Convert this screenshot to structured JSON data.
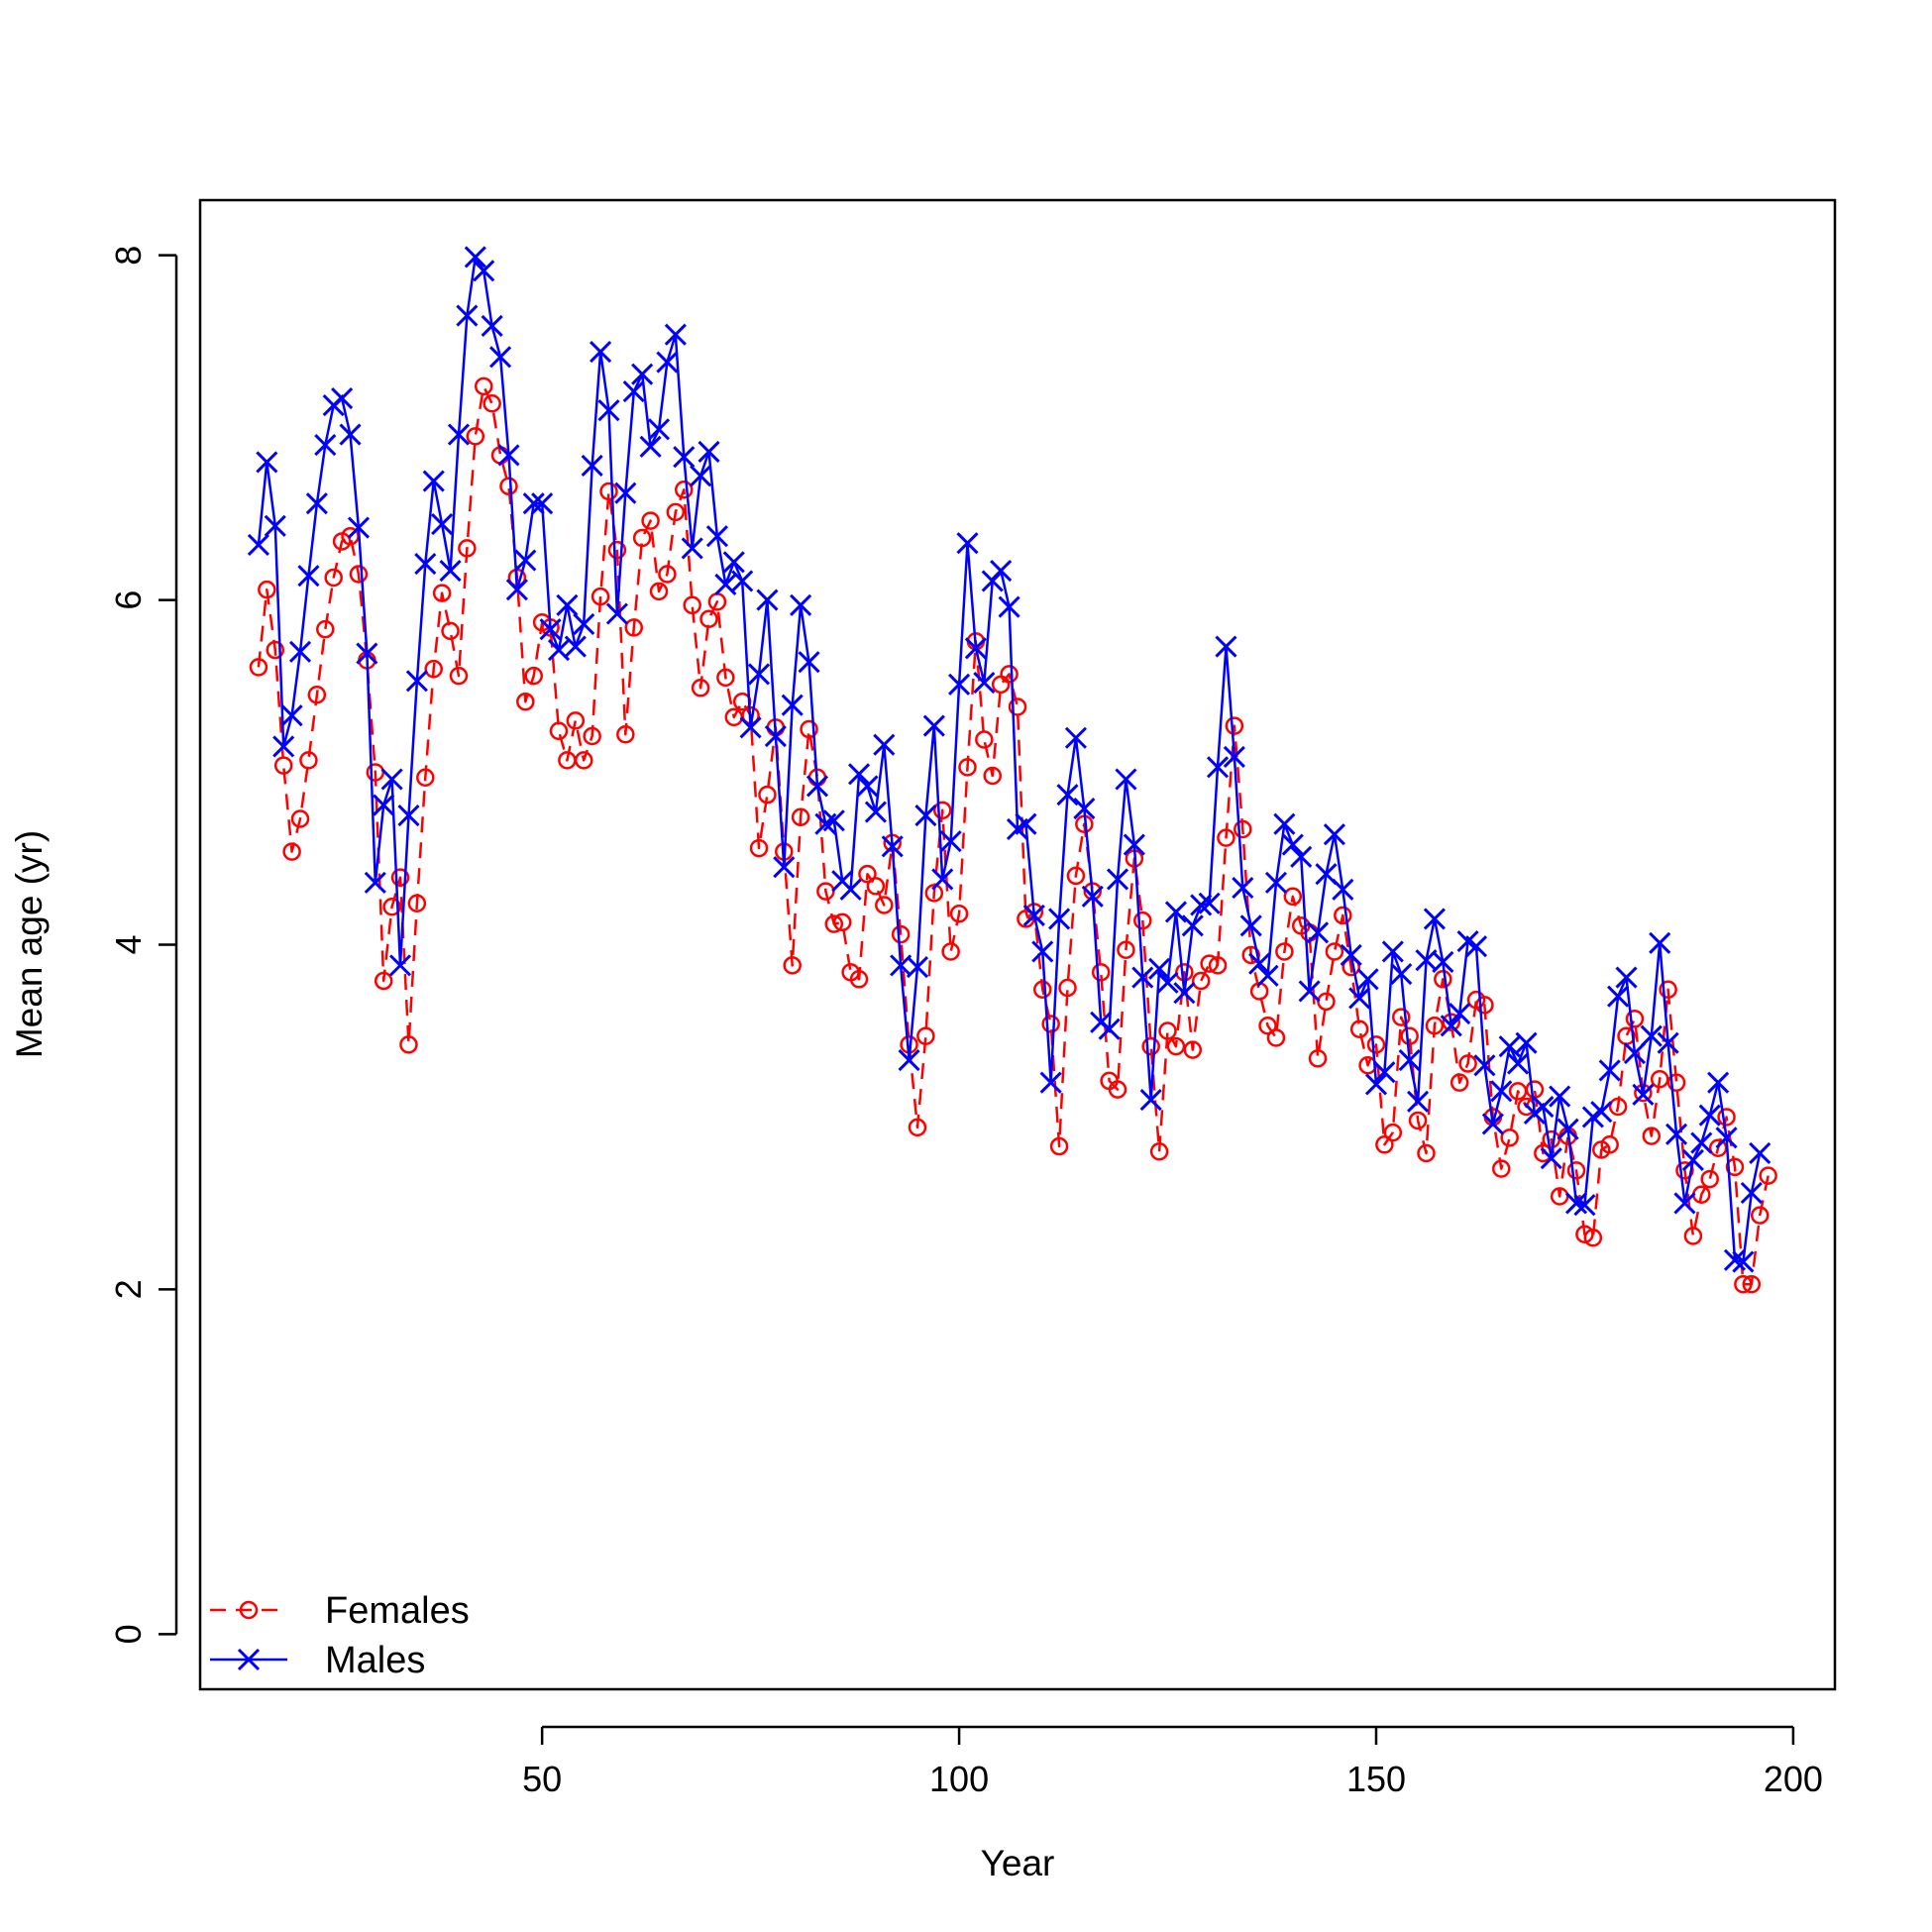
{
  "chart_data": {
    "type": "line",
    "title": "",
    "xlabel": "Year",
    "ylabel": "Mean age (yr)",
    "xlim": [
      9,
      205
    ],
    "ylim": [
      -0.32,
      8.32
    ],
    "xticks": [
      50,
      100,
      150,
      200
    ],
    "yticks": [
      0,
      2,
      4,
      6,
      8
    ],
    "grid": false,
    "legend_position": "bottom-left",
    "x_start": 16,
    "series": [
      {
        "name": "Females",
        "color": "#ff0000",
        "line_style": "dashed",
        "marker": "circle",
        "values": [
          5.61,
          6.06,
          5.71,
          5.04,
          4.54,
          4.73,
          5.07,
          5.45,
          5.83,
          6.13,
          6.34,
          6.37,
          6.15,
          5.65,
          5.0,
          3.79,
          4.22,
          4.39,
          3.42,
          4.24,
          4.97,
          5.6,
          6.04,
          5.82,
          5.56,
          6.3,
          6.95,
          7.24,
          7.14,
          6.84,
          6.66,
          6.13,
          5.41,
          5.56,
          5.87,
          5.84,
          5.24,
          5.07,
          5.3,
          5.07,
          5.21,
          6.02,
          6.63,
          6.29,
          5.22,
          5.84,
          6.36,
          6.46,
          6.05,
          6.15,
          6.51,
          6.64,
          5.97,
          5.49,
          5.89,
          5.99,
          5.55,
          5.32,
          5.41,
          5.33,
          4.56,
          4.87,
          5.26,
          4.54,
          3.88,
          4.74,
          5.25,
          4.97,
          4.31,
          4.12,
          4.13,
          3.84,
          3.8,
          4.41,
          4.34,
          4.23,
          4.59,
          4.06,
          3.42,
          2.94,
          3.47,
          4.3,
          4.78,
          3.96,
          4.18,
          5.03,
          5.76,
          5.19,
          4.98,
          5.51,
          5.57,
          5.38,
          4.15,
          4.19,
          3.74,
          3.54,
          2.83,
          3.75,
          4.4,
          4.7,
          4.31,
          3.84,
          3.21,
          3.16,
          3.97,
          4.5,
          4.14,
          3.41,
          2.8,
          3.5,
          3.41,
          3.84,
          3.39,
          3.79,
          3.89,
          3.88,
          4.62,
          5.27,
          4.67,
          3.94,
          3.73,
          3.53,
          3.46,
          3.96,
          4.28,
          4.11,
          4.07,
          3.34,
          3.67,
          3.96,
          4.17,
          3.87,
          3.51,
          3.3,
          3.42,
          2.84,
          2.91,
          3.58,
          3.47,
          2.98,
          2.79,
          3.53,
          3.8,
          3.55,
          3.2,
          3.31,
          3.68,
          3.65,
          3.0,
          2.7,
          2.88,
          3.15,
          3.06,
          3.16,
          2.79,
          2.87,
          2.54,
          2.89,
          2.69,
          2.32,
          2.3,
          2.81,
          2.84,
          3.06,
          3.47,
          3.57,
          3.14,
          2.89,
          3.22,
          3.74,
          3.2,
          2.69,
          2.31,
          2.55,
          2.64,
          2.82,
          3.0,
          2.71,
          2.03,
          2.03,
          2.43,
          2.66
        ]
      },
      {
        "name": "Males",
        "color": "#0000ff",
        "line_style": "solid",
        "marker": "cross",
        "values": [
          6.32,
          6.8,
          6.43,
          5.15,
          5.33,
          5.7,
          6.14,
          6.56,
          6.9,
          7.13,
          7.17,
          6.96,
          6.42,
          5.69,
          4.36,
          4.81,
          4.96,
          3.88,
          4.75,
          5.53,
          6.21,
          6.69,
          6.44,
          6.17,
          6.96,
          7.65,
          7.99,
          7.91,
          7.59,
          7.41,
          6.84,
          6.06,
          6.23,
          6.56,
          6.56,
          5.83,
          5.71,
          5.97,
          5.73,
          5.86,
          6.78,
          7.44,
          7.1,
          5.92,
          6.62,
          7.21,
          7.31,
          6.89,
          6.99,
          7.38,
          7.54,
          6.83,
          6.3,
          6.72,
          6.86,
          6.37,
          6.09,
          6.22,
          6.11,
          5.26,
          5.57,
          6.0,
          5.21,
          4.45,
          5.39,
          5.97,
          5.64,
          4.92,
          4.7,
          4.72,
          4.37,
          4.32,
          4.99,
          4.92,
          4.77,
          5.16,
          4.57,
          3.88,
          3.33,
          3.87,
          4.75,
          5.27,
          4.38,
          4.6,
          5.51,
          6.33,
          5.72,
          5.52,
          6.11,
          6.17,
          5.96,
          4.67,
          4.7,
          4.17,
          3.96,
          3.2,
          4.15,
          4.87,
          5.2,
          4.79,
          4.28,
          3.55,
          3.51,
          4.38,
          4.96,
          4.58,
          3.81,
          3.1,
          3.86,
          3.78,
          4.19,
          3.72,
          4.11,
          4.23,
          4.24,
          5.03,
          5.73,
          5.09,
          4.33,
          4.11,
          3.89,
          3.82,
          4.36,
          4.7,
          4.58,
          4.51,
          3.73,
          4.07,
          4.41,
          4.64,
          4.32,
          3.94,
          3.69,
          3.8,
          3.19,
          3.26,
          3.96,
          3.83,
          3.33,
          3.09,
          3.91,
          4.15,
          3.9,
          3.53,
          3.6,
          4.02,
          3.99,
          3.3,
          2.96,
          3.15,
          3.41,
          3.31,
          3.43,
          3.02,
          3.06,
          2.76,
          3.12,
          2.93,
          2.5,
          2.49,
          3.0,
          3.03,
          3.27,
          3.7,
          3.81,
          3.37,
          3.13,
          3.47,
          4.01,
          3.43,
          2.9,
          2.5,
          2.75,
          2.85,
          3.01,
          3.2,
          2.88,
          2.17,
          2.16,
          2.56,
          2.79
        ]
      }
    ]
  }
}
